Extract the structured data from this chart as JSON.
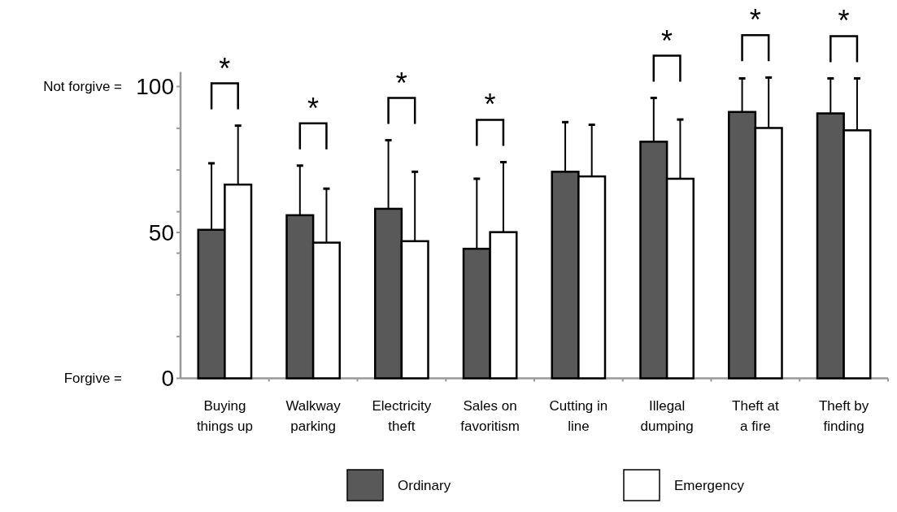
{
  "chart_data": {
    "type": "bar",
    "categories": [
      "Buying\nthings up",
      "Walkway\nparking",
      "Electricity\ntheft",
      "Sales on\nfavoritism",
      "Cutting in\nline",
      "Illegal\ndumping",
      "Theft at\na fire",
      "Theft by\nfinding"
    ],
    "series": [
      {
        "name": "Ordinary",
        "color": "#595959",
        "values": [
          50.9,
          55.9,
          58.1,
          44.4,
          70.8,
          81.1,
          91.3,
          90.8
        ],
        "errors": [
          [
            50.9,
            73.7
          ],
          [
            55.9,
            72.9
          ],
          [
            58.1,
            81.6
          ],
          [
            44.4,
            68.4
          ],
          [
            70.8,
            87.8
          ],
          [
            81.1,
            96.1
          ],
          [
            91.3,
            102.8
          ],
          [
            90.8,
            102.8
          ]
        ]
      },
      {
        "name": "Emergency",
        "color": "#ffffff",
        "values": [
          66.4,
          46.5,
          47.0,
          50.1,
          69.2,
          68.4,
          85.8,
          85.0
        ],
        "errors": [
          [
            66.4,
            86.6
          ],
          [
            46.5,
            65.0
          ],
          [
            47.0,
            70.8
          ],
          [
            50.1,
            74.1
          ],
          [
            69.2,
            86.9
          ],
          [
            68.4,
            88.7
          ],
          [
            85.8,
            103.1
          ],
          [
            85.0,
            102.8
          ]
        ]
      }
    ],
    "ylim": [
      0,
      105
    ],
    "yticks": [
      0,
      {
        "value": 14.3,
        "label": null
      },
      {
        "value": 28.6,
        "label": null
      },
      {
        "value": 42.9,
        "label": null
      },
      50,
      {
        "value": 57.1,
        "label": null
      },
      {
        "value": 71.4,
        "label": null
      },
      {
        "value": 85.7,
        "label": null
      },
      100
    ],
    "legend": "bottom",
    "annotations": [
      "Not forgive =",
      "Forgive =",
      "*",
      "*",
      "*",
      "*",
      "*",
      "*",
      "*"
    ]
  }
}
